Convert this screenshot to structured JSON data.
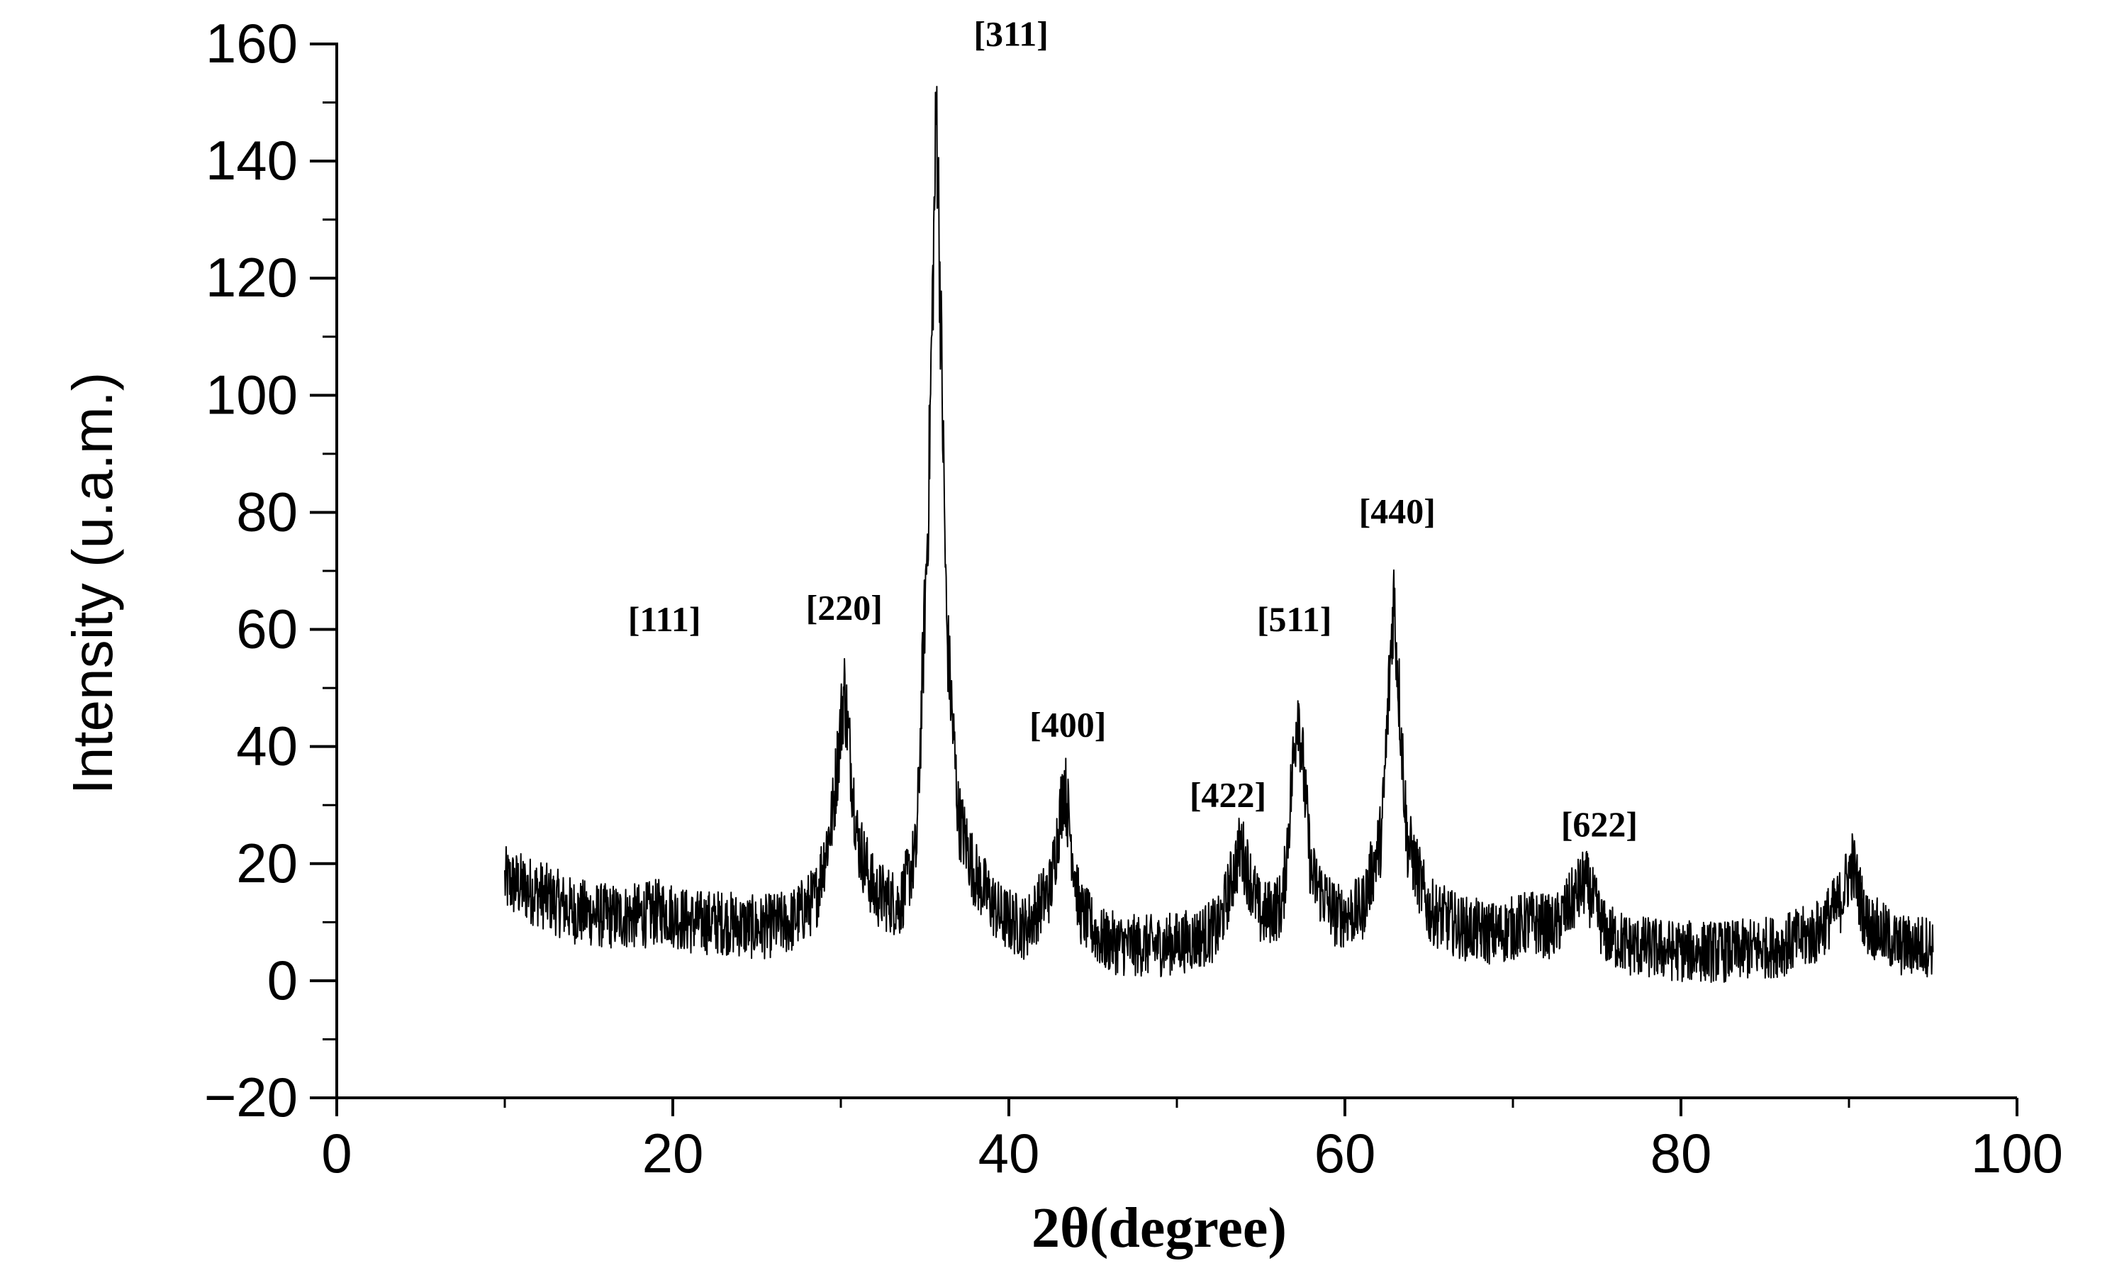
{
  "chart_data": {
    "type": "line",
    "title": "",
    "xlabel": "2θ(degree)",
    "ylabel": "Intensity (u.a.m.)",
    "xlim": [
      0,
      100
    ],
    "ylim": [
      -20,
      160
    ],
    "x_ticks": [
      0,
      20,
      40,
      60,
      80,
      100
    ],
    "y_ticks": [
      -20,
      0,
      20,
      40,
      60,
      80,
      100,
      120,
      140,
      160
    ],
    "x_tick_labels": [
      "0",
      "20",
      "40",
      "60",
      "80",
      "100"
    ],
    "y_tick_labels": [
      "−20",
      "0",
      "20",
      "40",
      "60",
      "80",
      "100",
      "120",
      "140",
      "160"
    ],
    "grid": false,
    "legend": "none",
    "line_color": "#000000",
    "series": [
      {
        "x": [
          10,
          12,
          14,
          16,
          18,
          19.5,
          21,
          23,
          25,
          27,
          28.5,
          29.5,
          30.2,
          31,
          32,
          33.5,
          34.5,
          35.2,
          35.7,
          36.3,
          37,
          38,
          39.5,
          41,
          42.5,
          43.3,
          44.2,
          45.5,
          47,
          49,
          51,
          52.5,
          53.8,
          55,
          56.3,
          57.2,
          58,
          59.5,
          61,
          62.2,
          62.9,
          63.7,
          65,
          67,
          69,
          71,
          72.5,
          74.3,
          75.5,
          77,
          80,
          83,
          86,
          88,
          89.4,
          90.2,
          91,
          93,
          95
        ],
        "y": [
          17,
          15,
          12,
          11,
          11,
          12,
          10,
          10,
          9,
          10,
          14,
          28,
          50,
          24,
          15,
          13,
          22,
          80,
          150,
          60,
          28,
          18,
          11,
          9,
          16,
          34,
          12,
          7,
          6,
          6,
          7,
          9,
          23,
          11,
          13,
          48,
          18,
          11,
          12,
          25,
          66,
          24,
          12,
          9,
          8,
          10,
          9,
          17,
          8,
          6,
          5,
          5,
          6,
          8,
          13,
          20,
          10,
          6,
          6
        ]
      }
    ],
    "annotations": [
      {
        "label": "[111]",
        "x": 19.5,
        "y": 58
      },
      {
        "label": "[220]",
        "x": 30.2,
        "y": 60
      },
      {
        "label": "[311]",
        "x": 35.7,
        "y": 158
      },
      {
        "label": "[400]",
        "x": 43.3,
        "y": 40
      },
      {
        "label": "[422]",
        "x": 53.8,
        "y": 28
      },
      {
        "label": "[511]",
        "x": 57.2,
        "y": 58
      },
      {
        "label": "[440]",
        "x": 62.9,
        "y": 76
      },
      {
        "label": "[622]",
        "x": 74.3,
        "y": 23
      }
    ]
  }
}
